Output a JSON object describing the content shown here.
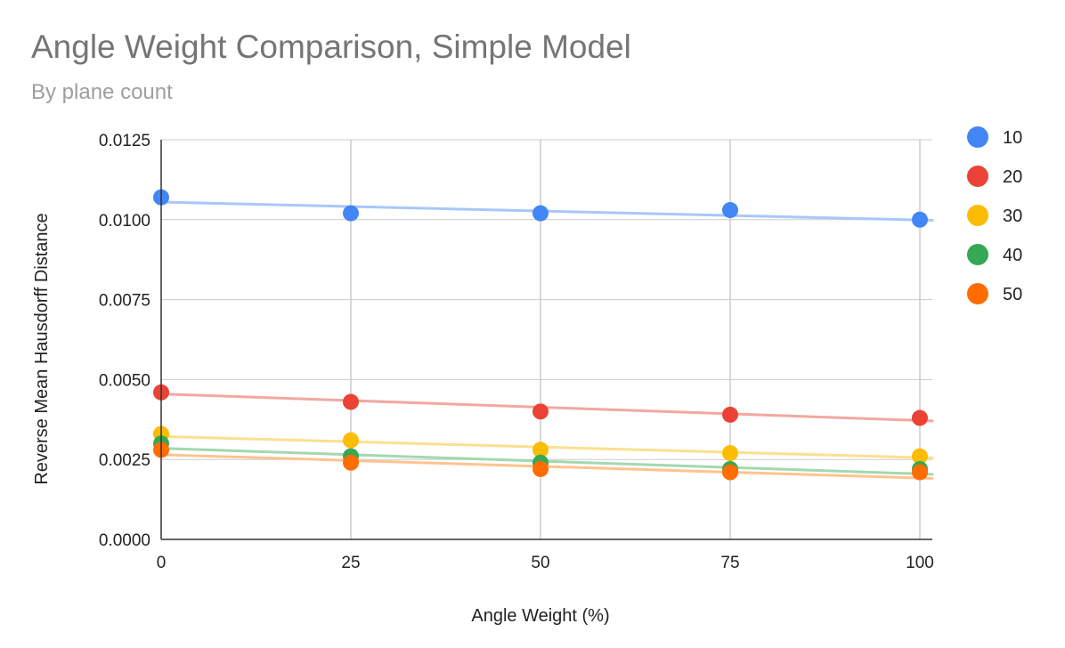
{
  "chart_data": {
    "type": "scatter",
    "title": "Angle Weight Comparison, Simple Model",
    "subtitle": "By plane count",
    "xlabel": "Angle Weight (%)",
    "ylabel": "Reverse Mean Hausdorff Distance",
    "x": [
      0,
      25,
      50,
      75,
      100
    ],
    "xlim": [
      0,
      100
    ],
    "ylim": [
      0,
      0.0125
    ],
    "x_ticks": [
      0,
      25,
      50,
      75,
      100
    ],
    "x_tick_labels": [
      "0",
      "25",
      "50",
      "75",
      "100"
    ],
    "y_ticks": [
      0,
      0.0025,
      0.005,
      0.0075,
      0.01,
      0.0125
    ],
    "y_tick_labels": [
      "0.0000",
      "0.0025",
      "0.0050",
      "0.0075",
      "0.0100",
      "0.0125"
    ],
    "grid": true,
    "legend_position": "right",
    "trendlines": true,
    "series": [
      {
        "name": "10",
        "color": "#4285F4",
        "trend_color": "#A8C7FA",
        "values": [
          0.0107,
          0.0102,
          0.0102,
          0.0103,
          0.01
        ],
        "trend": [
          0.01055,
          0.00999
        ]
      },
      {
        "name": "20",
        "color": "#EA4335",
        "trend_color": "#F2A7A1",
        "values": [
          0.0046,
          0.0043,
          0.004,
          0.0039,
          0.0038
        ],
        "trend": [
          0.00455,
          0.00372
        ]
      },
      {
        "name": "30",
        "color": "#FBBC04",
        "trend_color": "#FCE08F",
        "values": [
          0.0033,
          0.0031,
          0.0028,
          0.0027,
          0.0026
        ],
        "trend": [
          0.00322,
          0.00256
        ]
      },
      {
        "name": "40",
        "color": "#34A853",
        "trend_color": "#A3D8B0",
        "values": [
          0.003,
          0.0026,
          0.0024,
          0.0022,
          0.0022
        ],
        "trend": [
          0.00285,
          0.00205
        ]
      },
      {
        "name": "50",
        "color": "#FF6D01",
        "trend_color": "#FFC38F",
        "values": [
          0.0028,
          0.0024,
          0.0022,
          0.0021,
          0.0021
        ],
        "trend": [
          0.00265,
          0.00192
        ]
      }
    ]
  }
}
